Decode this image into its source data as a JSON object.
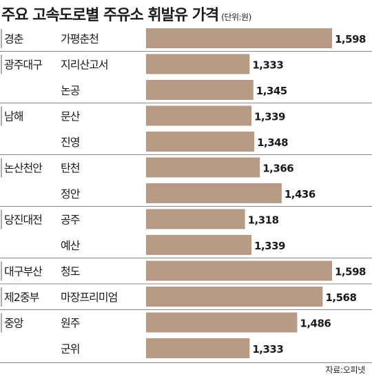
{
  "title": "주요 고속도로별 주유소 휘발유 가격",
  "unit": "(단위:원)",
  "source": "자료:오피넷",
  "colors": {
    "bar": "#b79a85",
    "text": "#1a1a1a",
    "rule": "#888888"
  },
  "chart_data": {
    "type": "bar",
    "orientation": "horizontal",
    "groups": [
      {
        "highway": "경춘",
        "stations": [
          {
            "name": "가평춘천",
            "value": 1598
          }
        ]
      },
      {
        "highway": "광주대구",
        "stations": [
          {
            "name": "지리산고서",
            "value": 1333
          },
          {
            "name": "논공",
            "value": 1345
          }
        ]
      },
      {
        "highway": "남해",
        "stations": [
          {
            "name": "문산",
            "value": 1339
          },
          {
            "name": "진영",
            "value": 1348
          }
        ]
      },
      {
        "highway": "논산천안",
        "stations": [
          {
            "name": "탄천",
            "value": 1366
          },
          {
            "name": "정안",
            "value": 1436
          }
        ]
      },
      {
        "highway": "당진대전",
        "stations": [
          {
            "name": "공주",
            "value": 1318
          },
          {
            "name": "예산",
            "value": 1339
          }
        ]
      },
      {
        "highway": "대구부산",
        "stations": [
          {
            "name": "청도",
            "value": 1598
          }
        ]
      },
      {
        "highway": "제2중부",
        "stations": [
          {
            "name": "마장프리미엄",
            "value": 1568
          }
        ]
      },
      {
        "highway": "중앙",
        "stations": [
          {
            "name": "원주",
            "value": 1486
          },
          {
            "name": "군위",
            "value": 1333
          }
        ]
      }
    ]
  }
}
